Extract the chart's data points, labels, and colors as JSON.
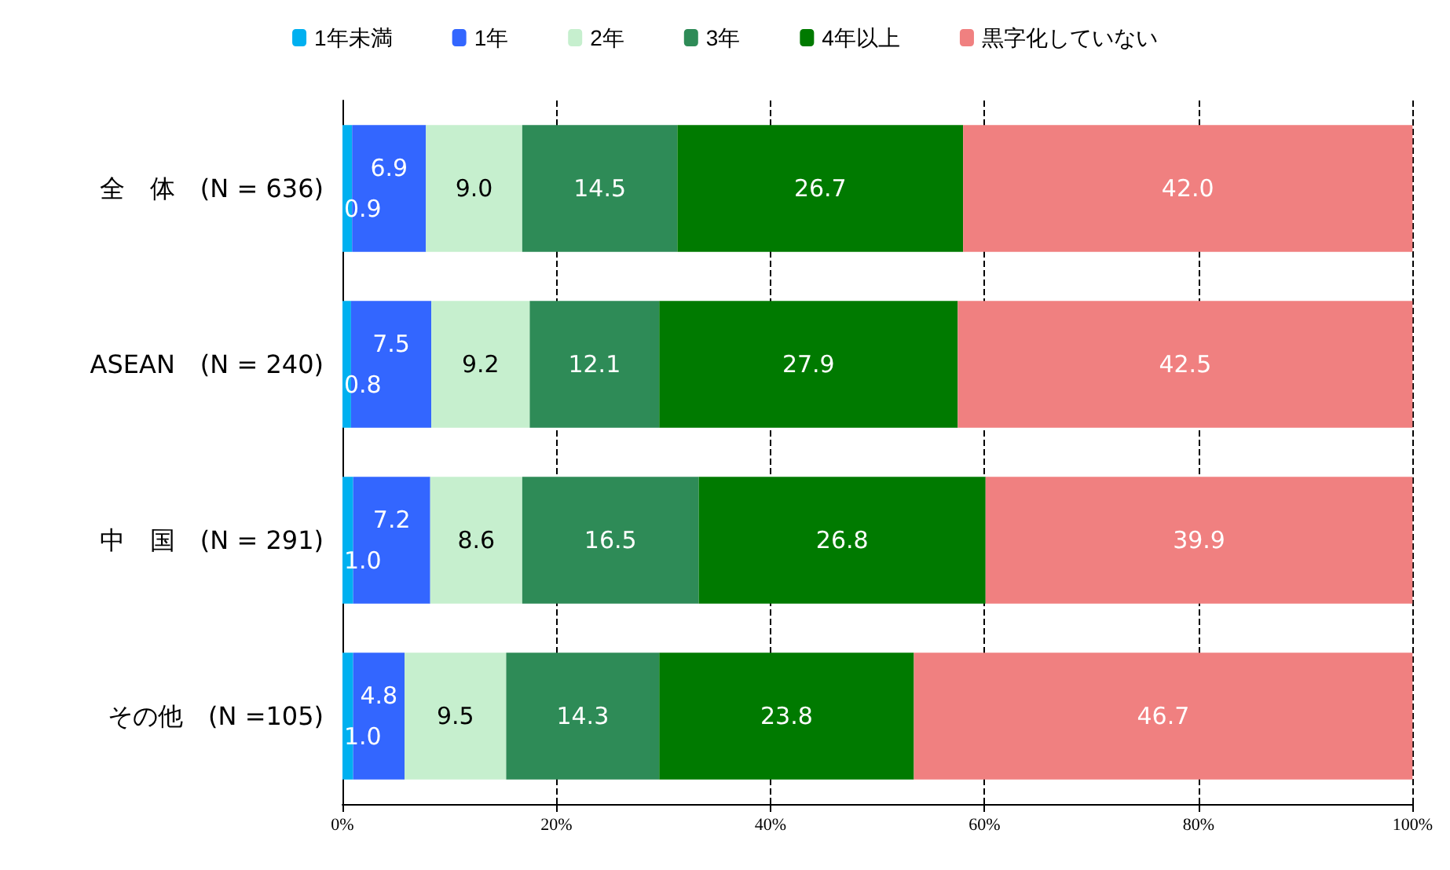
{
  "chart_data": {
    "type": "bar",
    "orientation": "horizontal",
    "stacked": true,
    "legend": "top",
    "grid": "x",
    "line_style": "dashed",
    "categories": [
      "全　体　(N = 636)",
      "ASEAN　(N = 240)",
      "中　国　(N = 291)",
      "その他　(N =105)"
    ],
    "xlim": [
      0,
      100
    ],
    "xticks": [
      {
        "value": 0,
        "label": "0%"
      },
      {
        "value": 20,
        "label": "20%"
      },
      {
        "value": 40,
        "label": "40%"
      },
      {
        "value": 60,
        "label": "60%"
      },
      {
        "value": 80,
        "label": "80%"
      },
      {
        "value": 100,
        "label": "100%"
      }
    ],
    "series": [
      {
        "name": "1年未満",
        "color": "#00b0f0",
        "values": [
          0.9,
          0.8,
          1.0,
          1.0
        ],
        "value_labels": [
          "0.9",
          "0.8",
          "1.0",
          "1.0"
        ]
      },
      {
        "name": "1年",
        "color": "#3366ff",
        "values": [
          6.9,
          7.5,
          7.2,
          4.8
        ],
        "value_labels": [
          "6.9",
          "7.5",
          "7.2",
          "4.8"
        ]
      },
      {
        "name": "2年",
        "color": "#c6efce",
        "values": [
          9.0,
          9.2,
          8.6,
          9.5
        ],
        "value_labels": [
          "9.0",
          "9.2",
          "8.6",
          "9.5"
        ]
      },
      {
        "name": "3年",
        "color": "#2e8b57",
        "values": [
          14.5,
          12.1,
          16.5,
          14.3
        ],
        "value_labels": [
          "14.5",
          "12.1",
          "16.5",
          "14.3"
        ]
      },
      {
        "name": "4年以上",
        "color": "#007a00",
        "values": [
          26.7,
          27.9,
          26.8,
          23.8
        ],
        "value_labels": [
          "26.7",
          "27.9",
          "26.8",
          "23.8"
        ]
      },
      {
        "name": "黒字化していない",
        "color": "#f08080",
        "values": [
          42.0,
          42.5,
          39.9,
          46.7
        ],
        "value_labels": [
          "42.0",
          "42.5",
          "39.9",
          "46.7"
        ]
      }
    ]
  }
}
